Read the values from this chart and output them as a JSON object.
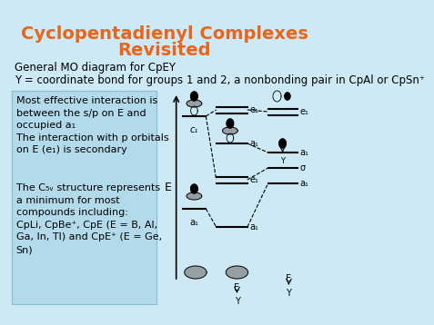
{
  "bg_color": "#cce9f5",
  "title_line1": "Cyclopentadienyl Complexes",
  "title_line2": "Revisited",
  "title_color": "#e8651a",
  "title_fontsize": 14,
  "subtitle1": "General MO diagram for CpEY",
  "subtitle2": "Y = coordinate bond for groups 1 and 2, a nonbonding pair in CpAl or CpSn⁺",
  "subtitle_fontsize": 8.5,
  "box_color": "#b3daea",
  "text_top": "Most effective interaction is\nbetween the s/p on E and\noccupied a₁\nThe interaction with p orbitals\non E (e₁) is secondary",
  "text_bottom": "The C₅ᵥ structure represents\na minimum for most\ncompounds including:\nCpLi, CpBe⁺, CpE (E = B, Al,\nGa, In, Tl) and CpE⁺ (E = Ge,\nSn)",
  "text_fontsize": 8.0
}
